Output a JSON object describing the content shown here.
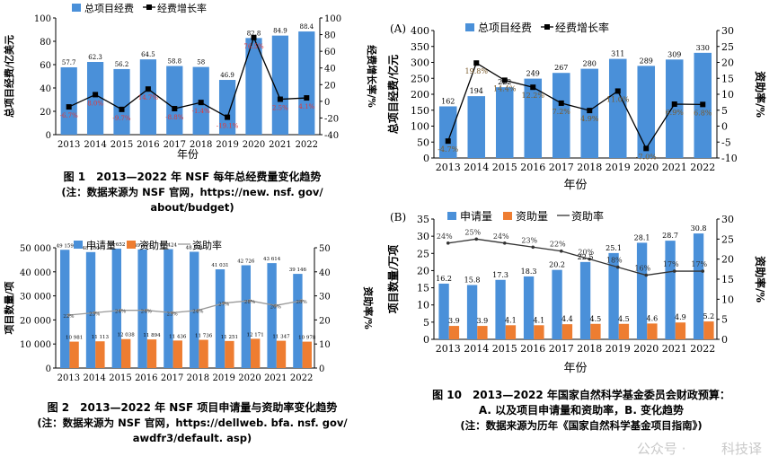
{
  "chart_data": [
    {
      "id": "fig1",
      "type": "bar",
      "categories": [
        "2013",
        "2014",
        "2015",
        "2016",
        "2017",
        "2018",
        "2019",
        "2020",
        "2021",
        "2022"
      ],
      "series": [
        {
          "name": "总项目经费",
          "kind": "bar",
          "axis": "left",
          "values": [
            57.7,
            62.3,
            56.2,
            64.5,
            58.8,
            58,
            46.9,
            82.8,
            84.9,
            88.4
          ],
          "labels": [
            "57.7",
            "62.3",
            "56.2",
            "64.5",
            "58.8",
            "58",
            "46.9",
            "82.8",
            "84.9",
            "88.4"
          ]
        },
        {
          "name": "经费增长率",
          "kind": "line",
          "axis": "right",
          "values": [
            -6.7,
            8.0,
            -9.7,
            14.7,
            -8.8,
            -1.4,
            -19.1,
            76.5,
            2.5,
            4.1
          ],
          "labels": [
            "-6.7%",
            "8.0%",
            "-9.7%",
            "14.7%",
            "-8.8%",
            "-1.4%",
            "-19.1%",
            "76.5%",
            "2.5%",
            "4.1%"
          ]
        }
      ],
      "ylabel": "总项目经费/亿美元",
      "y2label": "经费增长率/%",
      "xlabel": "年份",
      "ylim": [
        0,
        100
      ],
      "y2lim": [
        -40,
        100
      ],
      "yticks": [
        "0",
        "20",
        "40",
        "60",
        "80",
        "100"
      ],
      "y2ticks": [
        "-40",
        "-20",
        "0",
        "20",
        "40",
        "60",
        "80",
        "100"
      ],
      "colors": {
        "bar": "#4a90d9",
        "line": "#000000"
      }
    },
    {
      "id": "fig2",
      "type": "bar",
      "categories": [
        "2013",
        "2014",
        "2015",
        "2016",
        "2017",
        "2018",
        "2019",
        "2020",
        "2021",
        "2022"
      ],
      "series": [
        {
          "name": "申请量",
          "kind": "bar",
          "axis": "left",
          "values": [
            49159,
            48200,
            49652,
            49307,
            49424,
            48334,
            41031,
            42726,
            43614,
            39146
          ],
          "labels": [
            "49 159",
            "48 200",
            "49 652",
            "49 307",
            "49 424",
            "48 334",
            "41 031",
            "42 726",
            "43 614",
            "39 146"
          ]
        },
        {
          "name": "资助量",
          "kind": "bar",
          "axis": "left",
          "values": [
            10981,
            11113,
            12038,
            11894,
            11436,
            11736,
            11251,
            12171,
            11347,
            10978
          ],
          "labels": [
            "10 981",
            "11 113",
            "12 038",
            "11 894",
            "11 436",
            "11 736",
            "11 251",
            "12 171",
            "11 347",
            "10 978"
          ]
        },
        {
          "name": "资助率",
          "kind": "line",
          "axis": "right",
          "values": [
            22,
            23,
            24,
            24,
            23,
            24,
            27,
            28,
            26,
            28
          ],
          "labels": [
            "22%",
            "23%",
            "24%",
            "24%",
            "23%",
            "24%",
            "27%",
            "28%",
            "26%",
            "28%"
          ]
        }
      ],
      "ylabel": "项目数量/项",
      "y2label": "资助率/%",
      "xlabel": "",
      "ylim": [
        0,
        50000
      ],
      "y2lim": [
        0,
        50
      ],
      "yticks": [
        "0",
        "10 000",
        "20 000",
        "30 000",
        "40 000",
        "50 000"
      ],
      "y2ticks": [
        "0",
        "10",
        "20",
        "30",
        "40",
        "50"
      ],
      "colors": {
        "bar": "#4a90d9",
        "bar2": "#ee7d31",
        "line": "#999999"
      }
    },
    {
      "id": "fig10a",
      "type": "bar",
      "panel_label": "(A)",
      "categories": [
        "2013",
        "2014",
        "2015",
        "2016",
        "2017",
        "2018",
        "2019",
        "2020",
        "2021",
        "2022"
      ],
      "series": [
        {
          "name": "总项目经费",
          "kind": "bar",
          "axis": "left",
          "values": [
            162,
            194,
            222,
            249,
            267,
            280,
            311,
            289,
            309,
            330
          ],
          "labels": [
            "162",
            "194",
            "222",
            "249",
            "267",
            "280",
            "311",
            "289",
            "309",
            "330"
          ]
        },
        {
          "name": "经费增长率",
          "kind": "line",
          "axis": "right",
          "values": [
            -4.7,
            19.8,
            14.4,
            12.2,
            7.2,
            4.9,
            11.0,
            -7.0,
            6.9,
            6.8
          ],
          "labels": [
            "-4.7%",
            "19.8%",
            "14.4%",
            "12.2%",
            "7.2%",
            "4.9%",
            "11.0%",
            "-7.0%",
            "6.9%",
            "6.8%"
          ]
        }
      ],
      "ylabel": "总项目经费/亿元",
      "y2label": "资助率/%",
      "xlabel": "年份",
      "ylim": [
        0,
        400
      ],
      "y2lim": [
        -10,
        30
      ],
      "yticks": [
        "0",
        "50",
        "100",
        "150",
        "200",
        "250",
        "300",
        "350",
        "400"
      ],
      "y2ticks": [
        "-10",
        "-5",
        "0",
        "5",
        "10",
        "15",
        "20",
        "25",
        "30"
      ],
      "colors": {
        "bar": "#4a90d9",
        "line": "#000000"
      }
    },
    {
      "id": "fig10b",
      "type": "bar",
      "panel_label": "(B)",
      "categories": [
        "2013",
        "2014",
        "2015",
        "2016",
        "2017",
        "2018",
        "2019",
        "2020",
        "2021",
        "2022"
      ],
      "series": [
        {
          "name": "申请量",
          "kind": "bar",
          "axis": "left",
          "values": [
            16.2,
            15.8,
            17.3,
            18.3,
            20.2,
            22.5,
            25.1,
            28.1,
            28.7,
            30.8
          ],
          "labels": [
            "16.2",
            "15.8",
            "17.3",
            "18.3",
            "20.2",
            "22.5",
            "25.1",
            "28.1",
            "28.7",
            "30.8"
          ]
        },
        {
          "name": "资助量",
          "kind": "bar",
          "axis": "left",
          "values": [
            3.9,
            3.9,
            4.1,
            4.1,
            4.4,
            4.5,
            4.5,
            4.6,
            4.9,
            5.2
          ],
          "labels": [
            "3.9",
            "3.9",
            "4.1",
            "4.1",
            "4.4",
            "4.5",
            "4.5",
            "4.6",
            "4.9",
            "5.2"
          ]
        },
        {
          "name": "资助率",
          "kind": "line",
          "axis": "right",
          "values": [
            24,
            25,
            24,
            23,
            22,
            20,
            18,
            16,
            17,
            17
          ],
          "labels": [
            "24%",
            "25%",
            "24%",
            "23%",
            "22%",
            "20%",
            "18%",
            "16%",
            "17%",
            "17%"
          ]
        }
      ],
      "ylabel": "项目数量/万项",
      "y2label": "资助率/%",
      "xlabel": "年份",
      "ylim": [
        0,
        35
      ],
      "y2lim": [
        0,
        30
      ],
      "yticks": [
        "0",
        "5",
        "10",
        "15",
        "20",
        "25",
        "30",
        "35"
      ],
      "y2ticks": [
        "0",
        "5",
        "10",
        "15",
        "20",
        "25",
        "30"
      ],
      "colors": {
        "bar": "#4a90d9",
        "bar2": "#ee7d31",
        "line": "#333333"
      }
    }
  ],
  "captions": {
    "fig1": {
      "title": "图 1　2013—2022 年 NSF 每年总经费量变化趋势",
      "note1": "(注：数据来源为 NSF 官网，https://new. nsf. gov/",
      "note2": "about/budget)"
    },
    "fig2": {
      "title": "图 2　2013—2022 年 NSF 项目申请量与资助率变化趋势",
      "note1": "(注：数据来源为 NSF 官网，https://dellweb. bfa. nsf. gov/",
      "note2": "awdfr3/default. asp)"
    },
    "fig10": {
      "title": "图 10　2013—2022 年国家自然科学基金委员会财政预算：",
      "line2": "A. 以及项目申请量和资助率，B. 变化趋势",
      "note": "(注：数据来源为历年《国家自然科学基金项目指南》)"
    }
  },
  "watermark": "公众号 · 　　 科技译"
}
